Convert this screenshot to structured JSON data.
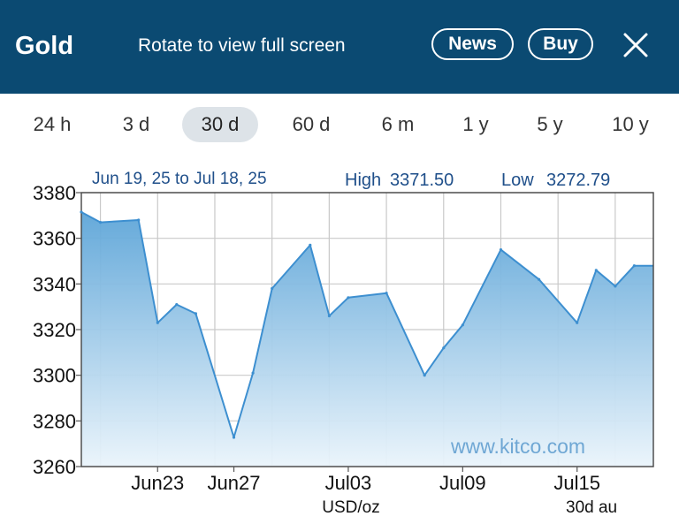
{
  "header": {
    "title": "Gold",
    "rotate_hint": "Rotate to view full screen",
    "news_label": "News",
    "buy_label": "Buy",
    "close_icon": "close-icon"
  },
  "ranges": [
    "24 h",
    "3 d",
    "30 d",
    "60 d",
    "6 m",
    "1 y",
    "5 y",
    "10 y"
  ],
  "active_range": "30 d",
  "colors": {
    "header_bg": "#0b4a72",
    "line": "#3d8fd0",
    "fill_top": "#5da5d8",
    "fill_bottom": "#eaf4fb",
    "label_blue": "#1f4f8a"
  },
  "chart_data": {
    "type": "area",
    "date_range": "Jun 19, 25 to Jul 18, 25",
    "high_label": "High",
    "high_value": "3371.50",
    "low_label": "Low",
    "low_value": "3272.79",
    "watermark": "www.kitco.com",
    "unit_label": "USD/oz",
    "corner_label": "30d au",
    "ylim": [
      3260,
      3380
    ],
    "yticks": [
      3260,
      3280,
      3300,
      3320,
      3340,
      3360,
      3380
    ],
    "xlim": [
      "2025-06-19",
      "2025-07-19"
    ],
    "xticks": [
      {
        "date": "2025-06-23",
        "label": "Jun23"
      },
      {
        "date": "2025-06-27",
        "label": "Jun27"
      },
      {
        "date": "2025-07-03",
        "label": "Jul03"
      },
      {
        "date": "2025-07-09",
        "label": "Jul09"
      },
      {
        "date": "2025-07-15",
        "label": "Jul15"
      }
    ],
    "points": [
      {
        "date": "2025-06-19",
        "value": 3371.5
      },
      {
        "date": "2025-06-20",
        "value": 3367
      },
      {
        "date": "2025-06-22",
        "value": 3368
      },
      {
        "date": "2025-06-23",
        "value": 3323
      },
      {
        "date": "2025-06-24",
        "value": 3331
      },
      {
        "date": "2025-06-25",
        "value": 3327
      },
      {
        "date": "2025-06-27",
        "value": 3272.79
      },
      {
        "date": "2025-06-28",
        "value": 3301
      },
      {
        "date": "2025-06-29",
        "value": 3338
      },
      {
        "date": "2025-07-01",
        "value": 3357
      },
      {
        "date": "2025-07-02",
        "value": 3326
      },
      {
        "date": "2025-07-03",
        "value": 3334
      },
      {
        "date": "2025-07-05",
        "value": 3336
      },
      {
        "date": "2025-07-07",
        "value": 3300
      },
      {
        "date": "2025-07-08",
        "value": 3312
      },
      {
        "date": "2025-07-09",
        "value": 3322
      },
      {
        "date": "2025-07-11",
        "value": 3355
      },
      {
        "date": "2025-07-13",
        "value": 3342
      },
      {
        "date": "2025-07-15",
        "value": 3323
      },
      {
        "date": "2025-07-16",
        "value": 3346
      },
      {
        "date": "2025-07-17",
        "value": 3339
      },
      {
        "date": "2025-07-18",
        "value": 3348
      }
    ]
  }
}
